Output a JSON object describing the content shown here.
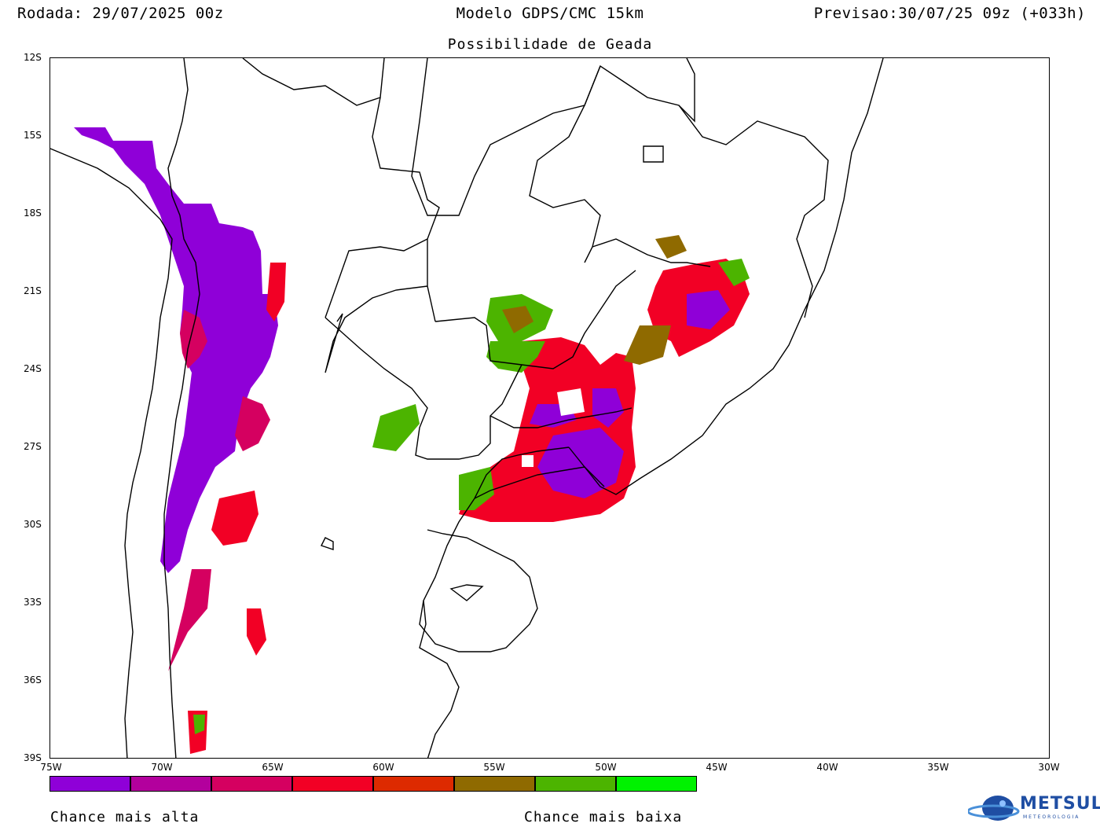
{
  "header": {
    "run": "Rodada: 29/07/2025 00z",
    "model": "Modelo GDPS/CMC 15km",
    "forecast": "Previsao:30/07/25 09z (+033h)",
    "subtitle": "Possibilidade de Geada"
  },
  "axes": {
    "lat_labels": [
      "12S",
      "15S",
      "18S",
      "21S",
      "24S",
      "27S",
      "30S",
      "33S",
      "36S",
      "39S"
    ],
    "lon_labels": [
      "75W",
      "70W",
      "65W",
      "60W",
      "55W",
      "50W",
      "45W",
      "40W",
      "35W",
      "30W"
    ]
  },
  "legend": {
    "colors": [
      "#8f00d8",
      "#b3009d",
      "#d50060",
      "#f20025",
      "#dd2a00",
      "#8f6a00",
      "#4cb400",
      "#00f200"
    ],
    "high_label": "Chance mais alta",
    "low_label": "Chance mais baixa"
  },
  "logo": {
    "name": "METSUL",
    "sub": "METEOROLOGIA"
  }
}
